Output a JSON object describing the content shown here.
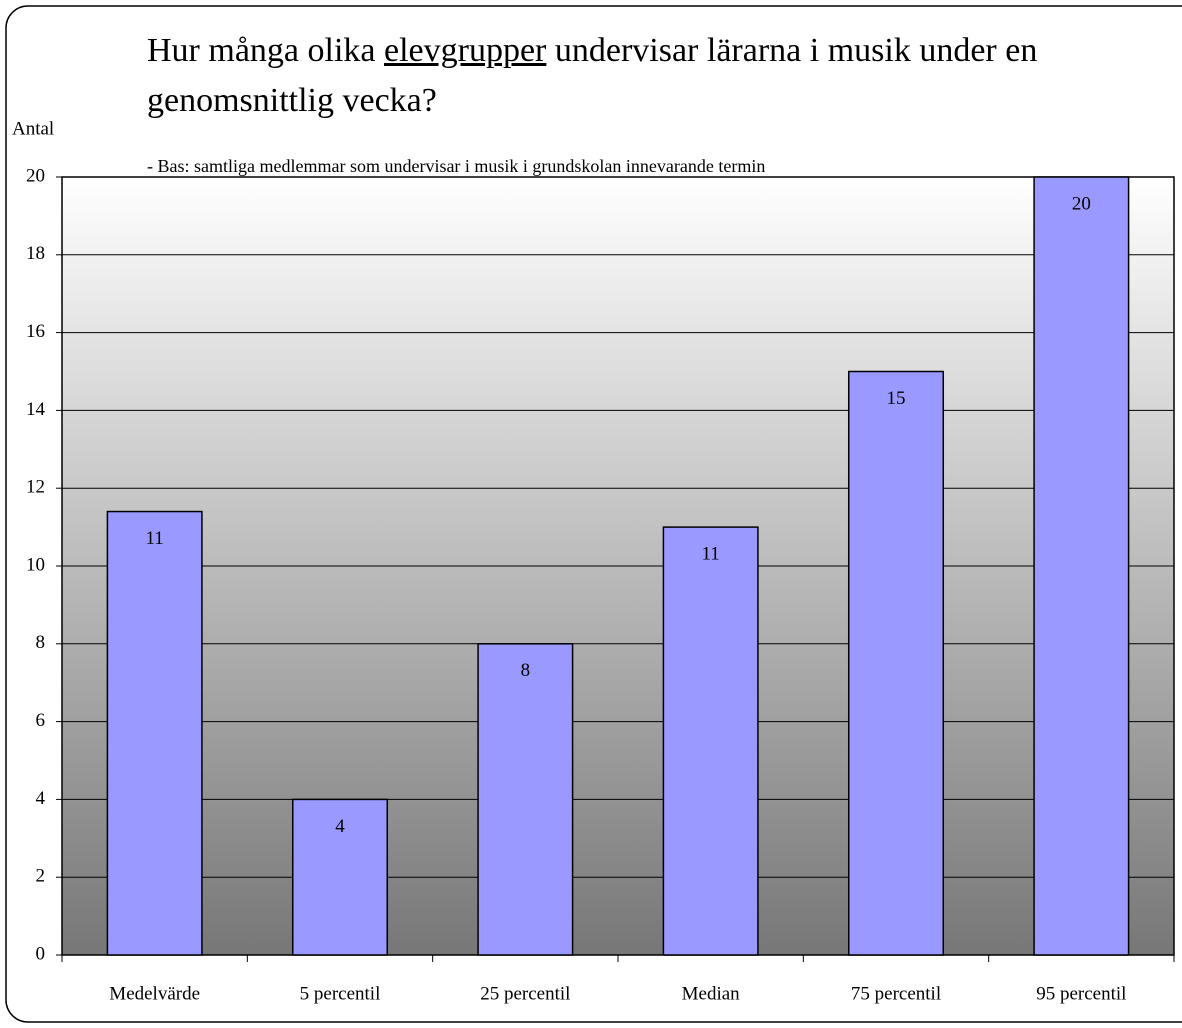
{
  "chart_data": {
    "type": "bar",
    "title": [
      "Hur många olika",
      "elevgrupper",
      "undervisar lärarna i musik under en genomsnittlig vecka?"
    ],
    "subtitle": "- Bas: samtliga medlemmar som undervisar i musik i grundskolan innevarande termin",
    "y_axis_label": "Antal",
    "categories": [
      "Medelvärde",
      "5 percentil",
      "25 percentil",
      "Median",
      "75 percentil",
      "95 percentil"
    ],
    "values": [
      11.4,
      4,
      8,
      11,
      15,
      20
    ],
    "value_labels": [
      "11",
      "4",
      "8",
      "11",
      "15",
      "20"
    ],
    "color": "#9999ff",
    "ylim": [
      0,
      20
    ],
    "yticks": [
      0,
      2,
      4,
      6,
      8,
      10,
      12,
      14,
      16,
      18,
      20
    ],
    "grid": true
  }
}
